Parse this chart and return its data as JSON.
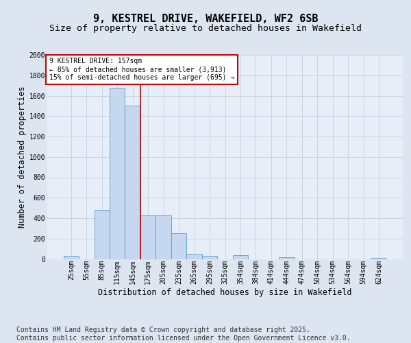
{
  "title_line1": "9, KESTREL DRIVE, WAKEFIELD, WF2 6SB",
  "title_line2": "Size of property relative to detached houses in Wakefield",
  "xlabel": "Distribution of detached houses by size in Wakefield",
  "ylabel": "Number of detached properties",
  "categories": [
    "25sqm",
    "55sqm",
    "85sqm",
    "115sqm",
    "145sqm",
    "175sqm",
    "205sqm",
    "235sqm",
    "265sqm",
    "295sqm",
    "325sqm",
    "354sqm",
    "384sqm",
    "414sqm",
    "444sqm",
    "474sqm",
    "504sqm",
    "534sqm",
    "564sqm",
    "594sqm",
    "624sqm"
  ],
  "values": [
    30,
    0,
    480,
    1680,
    1500,
    430,
    430,
    250,
    50,
    30,
    0,
    40,
    0,
    0,
    20,
    0,
    0,
    0,
    0,
    0,
    10
  ],
  "bar_color": "#c5d8ef",
  "bar_edge_color": "#5b9bd5",
  "red_line_x": 4.5,
  "red_line_color": "#cc0000",
  "annotation_text": "9 KESTREL DRIVE: 157sqm\n← 85% of detached houses are smaller (3,913)\n15% of semi-detached houses are larger (695) →",
  "annotation_box_facecolor": "#ffffff",
  "annotation_border_color": "#cc0000",
  "ylim": [
    0,
    2000
  ],
  "yticks": [
    0,
    200,
    400,
    600,
    800,
    1000,
    1200,
    1400,
    1600,
    1800,
    2000
  ],
  "grid_color": "#c8d4e4",
  "bg_color": "#dce5f0",
  "plot_bg_color": "#e8eef8",
  "footnote": "Contains HM Land Registry data © Crown copyright and database right 2025.\nContains public sector information licensed under the Open Government Licence v3.0.",
  "footnote_fontsize": 7,
  "title1_fontsize": 11,
  "title2_fontsize": 9.5,
  "xlabel_fontsize": 8.5,
  "ylabel_fontsize": 8.5,
  "tick_fontsize": 7,
  "annot_fontsize": 7
}
